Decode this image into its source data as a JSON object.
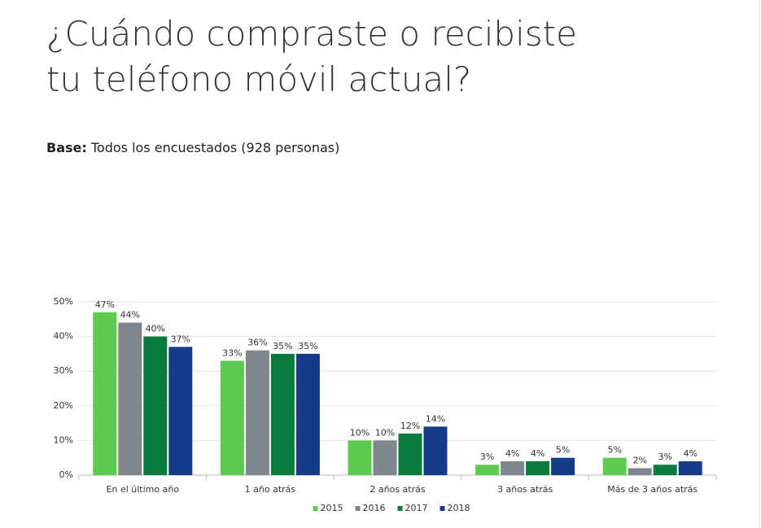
{
  "chart_data": {
    "type": "bar",
    "title": "¿Cuándo compraste o recibiste tu teléfono móvil actual?",
    "subtitle_label": "Base:",
    "subtitle": "Todos los encuestados (928 personas)",
    "categories": [
      "En el último año",
      "1 año atrás",
      "2 años atrás",
      "3 años atrás",
      "Más de 3 años atrás"
    ],
    "series": [
      {
        "name": "2015",
        "color": "#5ec94f",
        "values": [
          47,
          33,
          10,
          3,
          5
        ],
        "value_labels": [
          "47%",
          "33%",
          "10%",
          "3%",
          "5%"
        ]
      },
      {
        "name": "2016",
        "color": "#7f868c",
        "values": [
          44,
          36,
          10,
          4,
          2
        ],
        "value_labels": [
          "44%",
          "36%",
          "10%",
          "4%",
          "2%"
        ]
      },
      {
        "name": "2017",
        "color": "#0a7a3e",
        "values": [
          40,
          35,
          12,
          4,
          3
        ],
        "value_labels": [
          "40%",
          "35%",
          "12%",
          "4%",
          "3%"
        ]
      },
      {
        "name": "2018",
        "color": "#163b8a",
        "values": [
          37,
          35,
          14,
          5,
          4
        ],
        "value_labels": [
          "37%",
          "35%",
          "14%",
          "5%",
          "4%"
        ]
      }
    ],
    "ylim": [
      0,
      50
    ],
    "yticks": [
      {
        "value": 0,
        "label": "0%"
      },
      {
        "value": 10,
        "label": "10%"
      },
      {
        "value": 20,
        "label": "20%"
      },
      {
        "value": 30,
        "label": "30%"
      },
      {
        "value": 40,
        "label": "40%"
      },
      {
        "value": 50,
        "label": "50%"
      }
    ],
    "grid": true,
    "legend": "bottom"
  }
}
